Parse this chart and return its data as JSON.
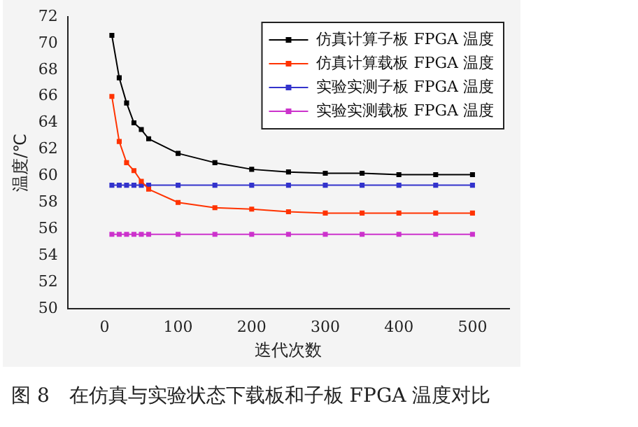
{
  "chart_data": {
    "type": "line",
    "xlabel": "迭代次数",
    "ylabel": "温度/℃",
    "x": [
      10,
      20,
      30,
      40,
      50,
      60,
      100,
      150,
      200,
      250,
      300,
      350,
      400,
      450,
      500
    ],
    "series": [
      {
        "name": "仿真计算子板 FPGA 温度",
        "color": "#000000",
        "values": [
          70.6,
          67.4,
          65.5,
          64.0,
          63.5,
          62.8,
          61.7,
          61.0,
          60.5,
          60.3,
          60.2,
          60.2,
          60.1,
          60.1,
          60.1
        ]
      },
      {
        "name": "仿真计算载板 FPGA 温度",
        "color": "#ff3300",
        "values": [
          66.0,
          62.6,
          61.0,
          60.4,
          59.6,
          59.0,
          58.0,
          57.6,
          57.5,
          57.3,
          57.2,
          57.2,
          57.2,
          57.2,
          57.2
        ]
      },
      {
        "name": "实验实测子板 FPGA 温度",
        "color": "#3333cc",
        "values": [
          59.3,
          59.3,
          59.3,
          59.3,
          59.3,
          59.3,
          59.3,
          59.3,
          59.3,
          59.3,
          59.3,
          59.3,
          59.3,
          59.3,
          59.3
        ]
      },
      {
        "name": "实验实测载板 FPGA 温度",
        "color": "#cc33cc",
        "values": [
          55.6,
          55.6,
          55.6,
          55.6,
          55.6,
          55.6,
          55.6,
          55.6,
          55.6,
          55.6,
          55.6,
          55.6,
          55.6,
          55.6,
          55.6
        ]
      }
    ],
    "xlim": [
      -50,
      550
    ],
    "xticks": [
      0,
      100,
      200,
      300,
      400,
      500
    ],
    "ylim": [
      50,
      72
    ],
    "yticks": [
      50,
      52,
      54,
      56,
      58,
      60,
      62,
      64,
      66,
      68,
      70,
      72
    ],
    "grid": false,
    "legend": "top right",
    "marker": "square",
    "line_style": "solid",
    "annotations": [
      "图 8　在仿真与实验状态下载板和子板 FPGA 温度对比"
    ]
  }
}
